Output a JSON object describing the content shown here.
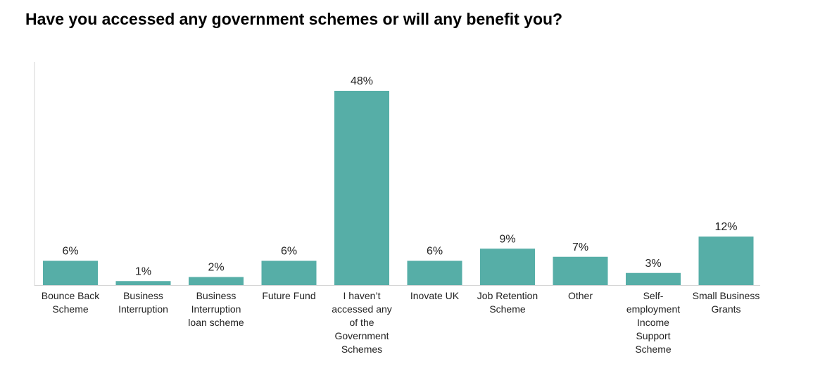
{
  "chart_data": {
    "type": "bar",
    "title": "Have you accessed any government schemes or will any benefit you?",
    "xlabel": "",
    "ylabel": "",
    "ylim": [
      0,
      50
    ],
    "grid": false,
    "legend": "none",
    "bar_color": "#56aea7",
    "axis_color": "#d6d6d6",
    "categories": [
      [
        "Bounce Back",
        "Scheme"
      ],
      [
        "Business",
        "Interruption"
      ],
      [
        "Business",
        "Interruption",
        "loan scheme"
      ],
      [
        "Future Fund"
      ],
      [
        "I haven’t",
        "accessed any",
        "of the",
        "Government",
        "Schemes"
      ],
      [
        "Inovate UK"
      ],
      [
        "Job Retention",
        "Scheme"
      ],
      [
        "Other"
      ],
      [
        "Self-",
        "employment",
        "Income",
        "Support",
        "Scheme"
      ],
      [
        "Small Business",
        "Grants"
      ]
    ],
    "values": [
      6,
      1,
      2,
      6,
      48,
      6,
      9,
      7,
      3,
      12
    ],
    "data_labels": [
      "6%",
      "1%",
      "2%",
      "6%",
      "48%",
      "6%",
      "9%",
      "7%",
      "3%",
      "12%"
    ]
  }
}
